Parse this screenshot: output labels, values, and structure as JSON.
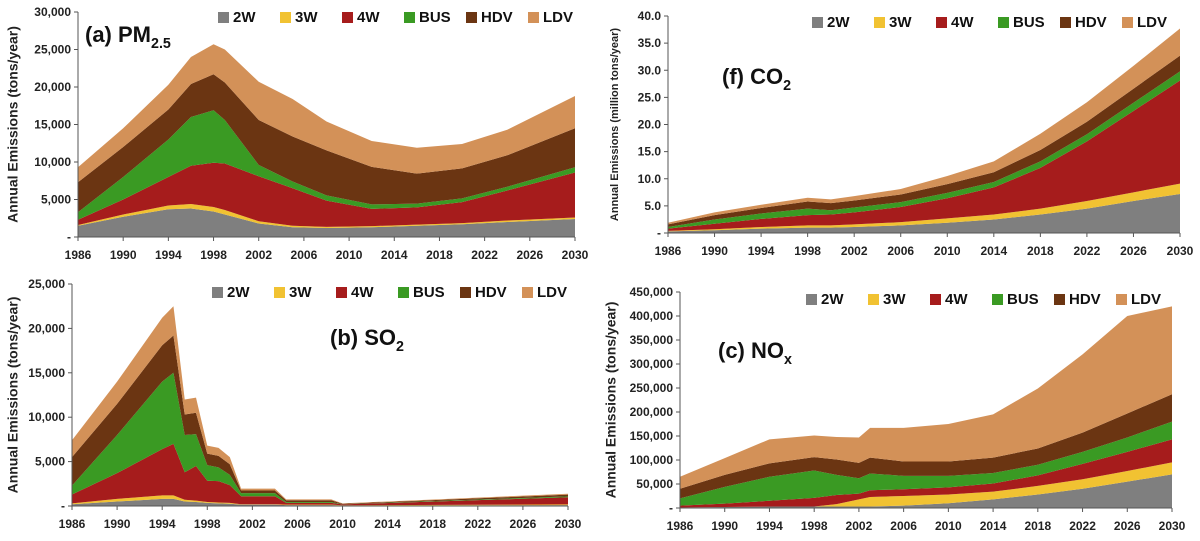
{
  "legend_labels": [
    "2W",
    "3W",
    "4W",
    "BUS",
    "HDV",
    "LDV"
  ],
  "colors": {
    "2W": "#7f7f7f",
    "3W": "#f1c232",
    "4W": "#a61c1c",
    "BUS": "#3a9a23",
    "HDV": "#6b3512",
    "LDV": "#d39158"
  },
  "chart_data": [
    {
      "id": "pm25",
      "type": "area",
      "stacked": true,
      "title": "(a) PM",
      "title_sub": "2.5",
      "ylabel": "Annual Emissions (tons/year)",
      "ylim": [
        0,
        30000
      ],
      "yticks": [
        "-",
        "5,000",
        "10,000",
        "15,000",
        "20,000",
        "25,000",
        "30,000"
      ],
      "xticks": [
        "1986",
        "1990",
        "1994",
        "1998",
        "2002",
        "2006",
        "2010",
        "2014",
        "2018",
        "2022",
        "2026",
        "2030"
      ],
      "x": [
        1986,
        1990,
        1994,
        1996,
        1998,
        1999,
        2002,
        2005,
        2008,
        2012,
        2016,
        2020,
        2024,
        2030
      ],
      "series": [
        {
          "name": "2W",
          "values": [
            1500,
            2700,
            3700,
            3800,
            3400,
            3000,
            1800,
            1300,
            1200,
            1300,
            1500,
            1700,
            2000,
            2400
          ]
        },
        {
          "name": "3W",
          "values": [
            100,
            300,
            500,
            600,
            600,
            600,
            300,
            200,
            150,
            150,
            150,
            150,
            200,
            200
          ]
        },
        {
          "name": "4W",
          "values": [
            700,
            2000,
            3800,
            5100,
            5900,
            6200,
            6000,
            5000,
            3500,
            2300,
            2300,
            2800,
            4000,
            6000
          ]
        },
        {
          "name": "BUS",
          "values": [
            1000,
            3000,
            5000,
            6500,
            7000,
            5800,
            1500,
            900,
            700,
            600,
            500,
            500,
            500,
            700
          ]
        },
        {
          "name": "HDV",
          "values": [
            4000,
            4000,
            4000,
            4400,
            4800,
            5000,
            6000,
            6000,
            6000,
            5000,
            4000,
            4000,
            4200,
            5200
          ]
        },
        {
          "name": "LDV",
          "values": [
            2000,
            2500,
            3300,
            3600,
            4000,
            4400,
            5100,
            5000,
            3850,
            3450,
            3450,
            3250,
            3400,
            4300
          ]
        }
      ]
    },
    {
      "id": "co2",
      "type": "area",
      "stacked": true,
      "title": "(f) CO",
      "title_sub": "2",
      "ylabel": "Annual Emissions (million tons/year)",
      "ylim": [
        0,
        40
      ],
      "yticks": [
        "-",
        "5.0",
        "10.0",
        "15.0",
        "20.0",
        "25.0",
        "30.0",
        "35.0",
        "40.0"
      ],
      "xticks": [
        "1986",
        "1990",
        "1994",
        "1998",
        "2002",
        "2006",
        "2010",
        "2014",
        "2018",
        "2022",
        "2026",
        "2030"
      ],
      "x": [
        1986,
        1990,
        1994,
        1998,
        2000,
        2002,
        2006,
        2010,
        2014,
        2018,
        2022,
        2026,
        2030
      ],
      "series": [
        {
          "name": "2W",
          "values": [
            0.3,
            0.5,
            0.8,
            1.0,
            1.0,
            1.1,
            1.4,
            1.9,
            2.5,
            3.4,
            4.5,
            5.9,
            7.2
          ]
        },
        {
          "name": "3W",
          "values": [
            0.1,
            0.2,
            0.3,
            0.4,
            0.4,
            0.5,
            0.6,
            0.8,
            0.9,
            1.1,
            1.4,
            1.6,
            1.9
          ]
        },
        {
          "name": "4W",
          "values": [
            0.4,
            1.0,
            1.5,
            1.9,
            2.0,
            2.2,
            2.8,
            3.7,
            5.0,
            7.5,
            11.0,
            15.0,
            19.0
          ]
        },
        {
          "name": "BUS",
          "values": [
            0.3,
            0.8,
            1.0,
            1.2,
            0.8,
            0.9,
            0.9,
            1.0,
            1.0,
            1.2,
            1.3,
            1.5,
            1.7
          ]
        },
        {
          "name": "HDV",
          "values": [
            0.5,
            0.8,
            1.0,
            1.3,
            1.3,
            1.3,
            1.4,
            1.6,
            1.8,
            2.1,
            2.3,
            2.6,
            2.9
          ]
        },
        {
          "name": "LDV",
          "values": [
            0.3,
            0.5,
            0.6,
            0.7,
            0.7,
            0.8,
            1.0,
            1.5,
            2.0,
            3.0,
            3.6,
            4.2,
            5.0
          ]
        }
      ]
    },
    {
      "id": "so2",
      "type": "area",
      "stacked": true,
      "title": "(b) SO",
      "title_sub": "2",
      "ylabel": "Annual Emissions (tons/year)",
      "ylim": [
        0,
        25000
      ],
      "yticks": [
        "-",
        "5,000",
        "10,000",
        "15,000",
        "20,000",
        "25,000"
      ],
      "xticks": [
        "1986",
        "1990",
        "1994",
        "1998",
        "2002",
        "2006",
        "2010",
        "2014",
        "2018",
        "2022",
        "2026",
        "2030"
      ],
      "x": [
        1986,
        1990,
        1994,
        1995,
        1996,
        1997,
        1998,
        1999,
        2000,
        2001,
        2004,
        2005,
        2009,
        2010,
        2030
      ],
      "series": [
        {
          "name": "2W",
          "values": [
            200,
            500,
            800,
            800,
            500,
            450,
            350,
            300,
            250,
            150,
            150,
            100,
            100,
            50,
            100
          ]
        },
        {
          "name": "3W",
          "values": [
            100,
            300,
            400,
            400,
            200,
            150,
            100,
            100,
            100,
            50,
            50,
            50,
            50,
            30,
            80
          ]
        },
        {
          "name": "4W",
          "values": [
            1000,
            2900,
            5200,
            5800,
            3100,
            3900,
            2400,
            2400,
            2000,
            900,
            900,
            200,
            200,
            100,
            800
          ]
        },
        {
          "name": "BUS",
          "values": [
            1000,
            4300,
            7600,
            8000,
            4200,
            3600,
            1750,
            1550,
            1150,
            350,
            350,
            100,
            100,
            20,
            100
          ]
        },
        {
          "name": "HDV",
          "values": [
            3200,
            3500,
            4100,
            4200,
            2300,
            2400,
            1300,
            1300,
            1200,
            300,
            300,
            200,
            200,
            50,
            200
          ]
        },
        {
          "name": "LDV",
          "values": [
            1900,
            2500,
            3100,
            3300,
            1700,
            1700,
            900,
            900,
            800,
            200,
            200,
            100,
            100,
            50,
            100
          ]
        }
      ]
    },
    {
      "id": "nox",
      "type": "area",
      "stacked": true,
      "title": "(c) NO",
      "title_sub": "x",
      "ylabel": "Annual Emissions (tons/year)",
      "ylim": [
        0,
        450000
      ],
      "yticks": [
        "-",
        "50,000",
        "100,000",
        "150,000",
        "200,000",
        "250,000",
        "300,000",
        "350,000",
        "400,000",
        "450,000"
      ],
      "xticks": [
        "1986",
        "1990",
        "1994",
        "1998",
        "2002",
        "2006",
        "2010",
        "2014",
        "2018",
        "2022",
        "2026",
        "2030"
      ],
      "x": [
        1986,
        1990,
        1994,
        1998,
        2000,
        2002,
        2003,
        2006,
        2010,
        2014,
        2018,
        2022,
        2026,
        2030
      ],
      "series": [
        {
          "name": "2W",
          "values": [
            1000,
            2000,
            3000,
            3000,
            3000,
            3000,
            3000,
            5000,
            10000,
            18000,
            28000,
            40000,
            55000,
            70000
          ]
        },
        {
          "name": "3W",
          "values": [
            0,
            0,
            0,
            0,
            5000,
            15000,
            20000,
            20000,
            18000,
            16000,
            18000,
            20000,
            22000,
            25000
          ]
        },
        {
          "name": "4W",
          "values": [
            4000,
            7000,
            12000,
            18000,
            19000,
            12000,
            14000,
            14000,
            15000,
            17000,
            22000,
            32000,
            40000,
            48000
          ]
        },
        {
          "name": "BUS",
          "values": [
            15000,
            35000,
            50000,
            57000,
            42000,
            32000,
            35000,
            28000,
            24000,
            22000,
            22000,
            25000,
            30000,
            37000
          ]
        },
        {
          "name": "HDV",
          "values": [
            20000,
            25000,
            28000,
            28000,
            32000,
            32000,
            33000,
            30000,
            30000,
            32000,
            34000,
            40000,
            50000,
            57000
          ]
        },
        {
          "name": "LDV",
          "values": [
            25000,
            35000,
            50000,
            45000,
            47000,
            53000,
            62000,
            70000,
            78000,
            90000,
            125000,
            163000,
            203000,
            183000
          ]
        }
      ]
    }
  ]
}
